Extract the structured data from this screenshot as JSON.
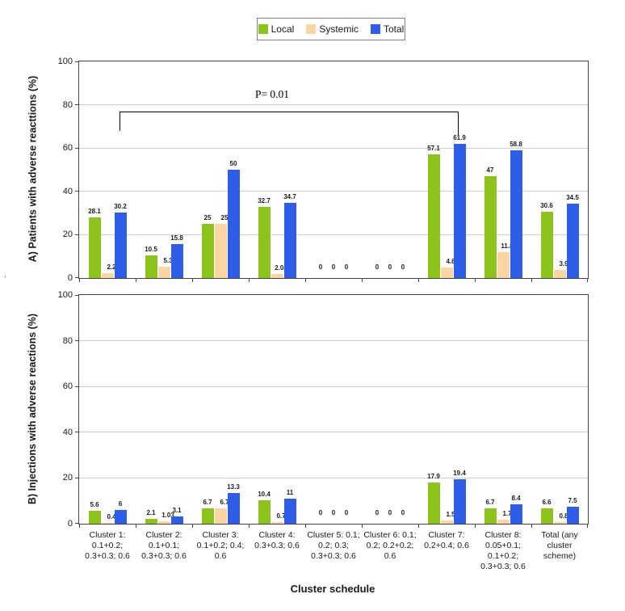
{
  "legend": {
    "items": [
      {
        "label": "Local",
        "color": "#8CC41C"
      },
      {
        "label": "Systemic",
        "color": "#FBD6A4"
      },
      {
        "label": "Total",
        "color": "#2E5EE8"
      }
    ]
  },
  "annotation": {
    "p_label": "P= 0.01",
    "note": "bracket spans Cluster 1 to Cluster 7 total bars"
  },
  "x_axis": {
    "title": "Cluster schedule"
  },
  "stray_mark": ".",
  "chart_data": [
    {
      "type": "bar",
      "panel": "A",
      "ylabel": "A) Patients with adverse reacttions (%)",
      "ylim": [
        0,
        100
      ],
      "yticks": [
        0,
        20,
        40,
        60,
        80,
        100
      ],
      "grid": true,
      "legend_position": "top-center",
      "show_x_labels": false,
      "categories": [
        "Cluster 1:\n0.1+0.2;\n0.3+0.3; 0.6",
        "Cluster 2:\n0.1+0.1;\n0.3+0.3; 0.6",
        "Cluster 3:\n0.1+0.2; 0.4;\n0.6",
        "Cluster 4:\n0.3+0.3; 0.6",
        "Cluster 5: 0.1;\n0.2; 0.3;\n0.3+0.3; 0.6",
        "Cluster 6: 0.1;\n0.2; 0.2+0.2;\n0.6",
        "Cluster 7:\n0.2+0.4; 0.6",
        "Cluster 8:\n0.05+0.1;\n0.1+0.2;\n0.3+0.3; 0.6",
        "Total (any\ncluster\nscheme)"
      ],
      "series": [
        {
          "name": "Local",
          "values": [
            28.1,
            10.5,
            25,
            32.7,
            0,
            0,
            57.1,
            47,
            30.6
          ]
        },
        {
          "name": "Systemic",
          "values": [
            2.2,
            5.3,
            25,
            2.04,
            0,
            0,
            4.8,
            11.8,
            3.9
          ]
        },
        {
          "name": "Total",
          "values": [
            30.2,
            15.8,
            50,
            34.7,
            0,
            0,
            61.9,
            58.8,
            34.5
          ]
        }
      ]
    },
    {
      "type": "bar",
      "panel": "B",
      "ylabel": "B) Injections with adverse reactions (%)",
      "ylim": [
        0,
        100
      ],
      "yticks": [
        0,
        20,
        40,
        60,
        80,
        100
      ],
      "grid": true,
      "show_x_labels": true,
      "categories": [
        "Cluster 1:\n0.1+0.2;\n0.3+0.3; 0.6",
        "Cluster 2:\n0.1+0.1;\n0.3+0.3; 0.6",
        "Cluster 3:\n0.1+0.2; 0.4;\n0.6",
        "Cluster 4:\n0.3+0.3; 0.6",
        "Cluster 5: 0.1;\n0.2; 0.3;\n0.3+0.3; 0.6",
        "Cluster 6: 0.1;\n0.2; 0.2+0.2;\n0.6",
        "Cluster 7:\n0.2+0.4; 0.6",
        "Cluster 8:\n0.05+0.1;\n0.1+0.2;\n0.3+0.3; 0.6",
        "Total (any\ncluster\nscheme)"
      ],
      "series": [
        {
          "name": "Local",
          "values": [
            5.6,
            2.1,
            6.7,
            10.4,
            0,
            0,
            17.9,
            6.7,
            6.6
          ]
        },
        {
          "name": "Systemic",
          "values": [
            0.4,
            1.03,
            6.7,
            0.7,
            0,
            0,
            1.5,
            1.7,
            0.8
          ]
        },
        {
          "name": "Total",
          "values": [
            6,
            3.1,
            13.3,
            11,
            0,
            0,
            19.4,
            8.4,
            7.5
          ]
        }
      ]
    }
  ]
}
